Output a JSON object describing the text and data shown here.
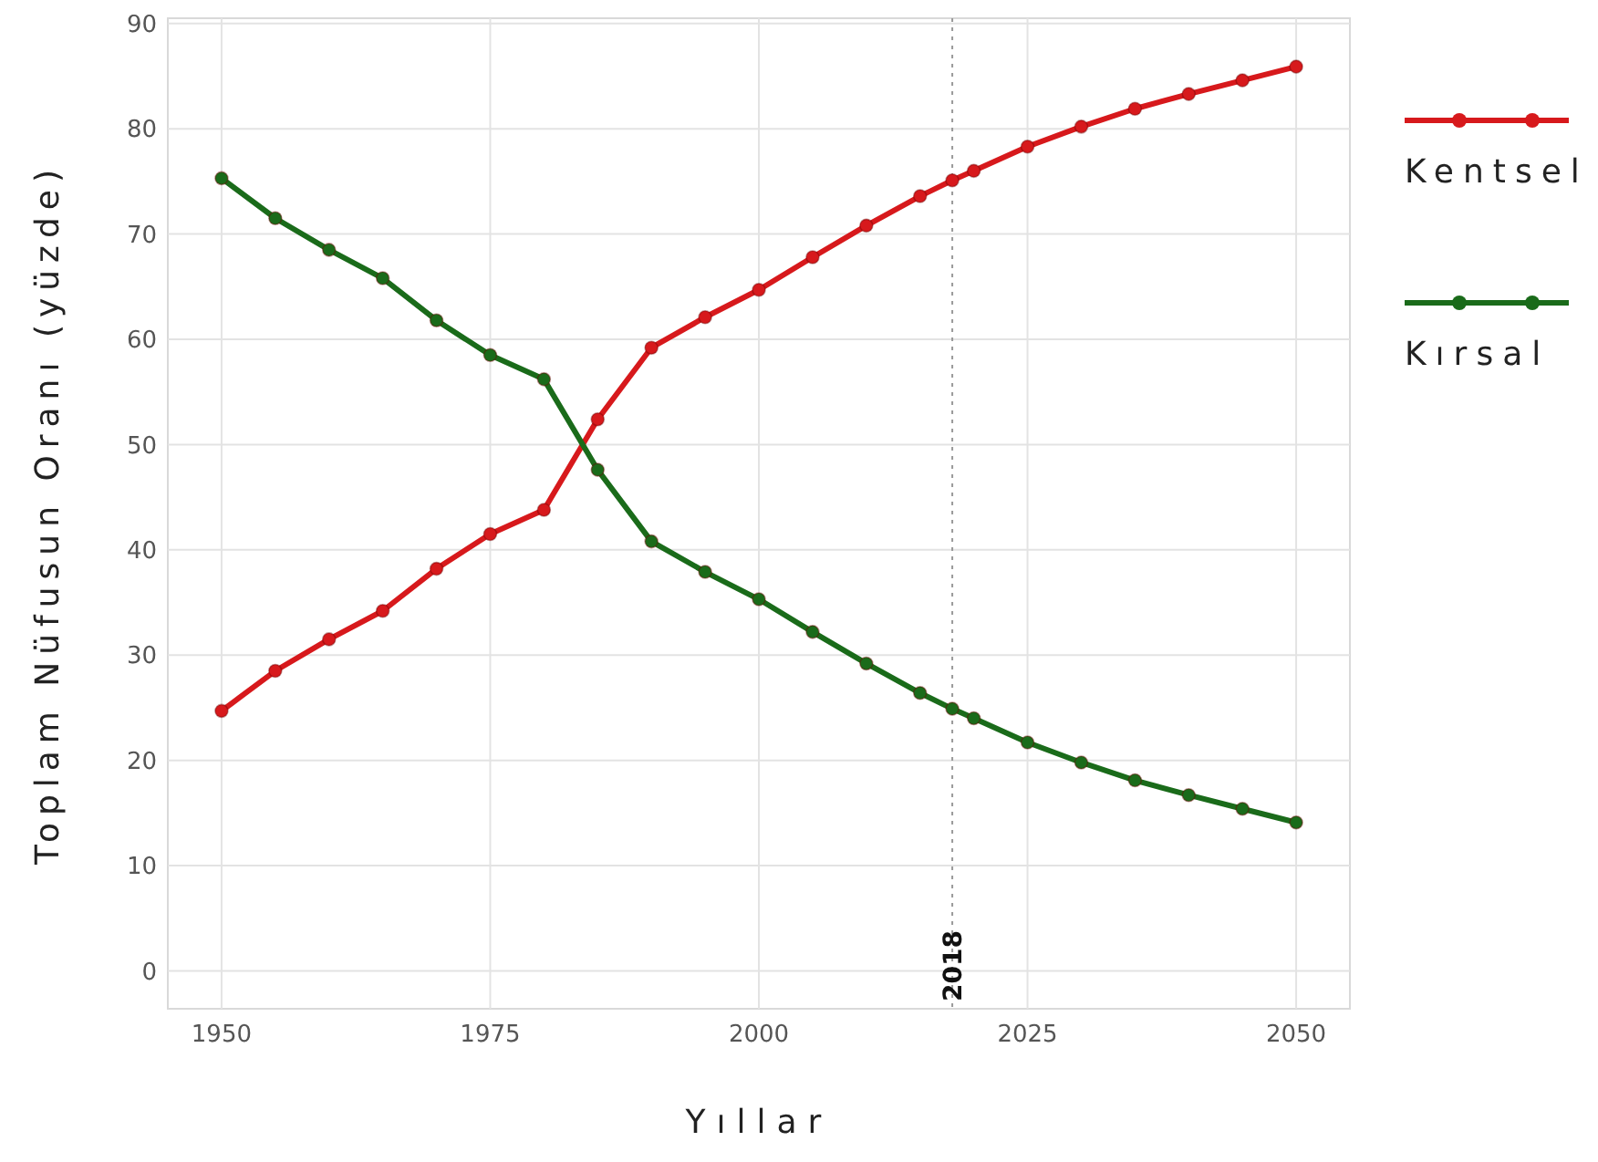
{
  "chart_data": {
    "type": "line",
    "xlabel": "Yıllar",
    "ylabel": "Toplam Nüfusun Oranı (yüzde)",
    "x": [
      1950,
      1955,
      1960,
      1965,
      1970,
      1975,
      1980,
      1985,
      1990,
      1995,
      2000,
      2005,
      2010,
      2015,
      2018,
      2020,
      2025,
      2030,
      2035,
      2040,
      2045,
      2050
    ],
    "series": [
      {
        "name": "Kentsel",
        "color": "#d7191c",
        "values": [
          24.7,
          28.5,
          31.5,
          34.2,
          38.2,
          41.5,
          43.8,
          52.4,
          59.2,
          62.1,
          64.7,
          67.8,
          70.8,
          73.6,
          75.1,
          76.0,
          78.3,
          80.2,
          81.9,
          83.3,
          84.6,
          85.9
        ]
      },
      {
        "name": "Kırsal",
        "color": "#1a6b1a",
        "values": [
          75.3,
          71.5,
          68.5,
          65.8,
          61.8,
          58.5,
          56.2,
          47.6,
          40.8,
          37.9,
          35.3,
          32.2,
          29.2,
          26.4,
          24.9,
          24.0,
          21.7,
          19.8,
          18.1,
          16.7,
          15.4,
          14.1
        ]
      }
    ],
    "xlim": [
      1945,
      2055
    ],
    "xticks": [
      1950,
      1975,
      2000,
      2025,
      2050
    ],
    "ylim": [
      -3.6,
      90.5
    ],
    "yticks": [
      0,
      10,
      20,
      30,
      40,
      50,
      60,
      70,
      80,
      90
    ],
    "ref_lines": [
      {
        "axis": "x",
        "value": 2018,
        "label": "2018",
        "color": "#999999",
        "line_style": "dotted"
      }
    ],
    "grid": true,
    "legend": "right",
    "marker": "circle",
    "line_style": "solid"
  }
}
